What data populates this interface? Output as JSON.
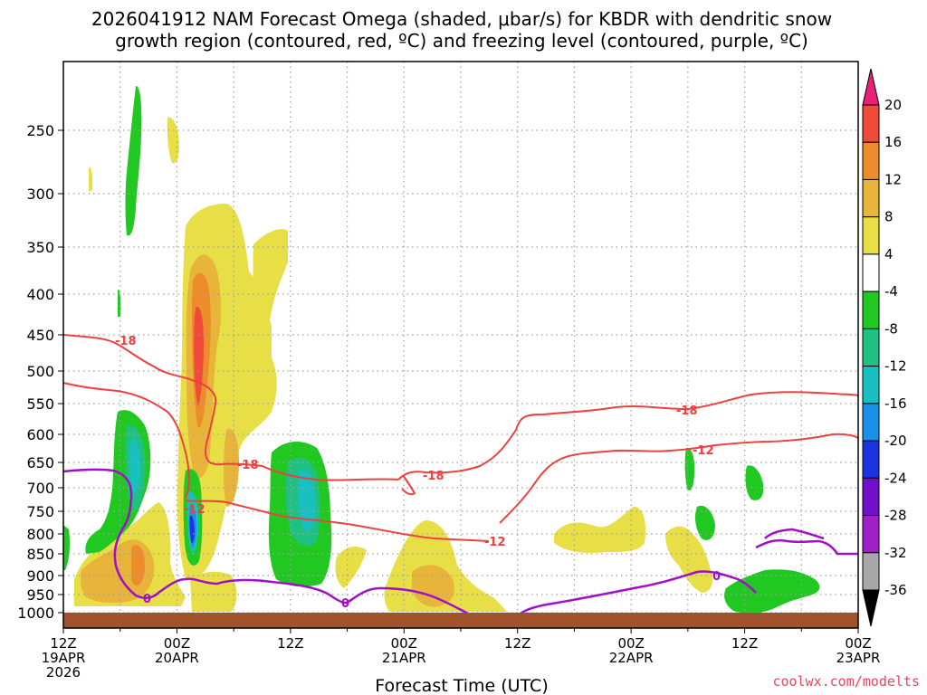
{
  "chart_data": {
    "type": "time-height cross section",
    "title_lines": [
      "2026041912 NAM Forecast Omega (shaded, μbar/s) for KBDR with dendritic snow",
      "growth region (contoured, red, ºC) and freezing level (contoured, purple, ºC)"
    ],
    "xlabel": "Forecast Time (UTC)",
    "ylabel": "",
    "y_axis_levels_hPa": [
      "250",
      "300",
      "350",
      "400",
      "450",
      "500",
      "550",
      "600",
      "650",
      "700",
      "750",
      "800",
      "850",
      "900",
      "950",
      "1000"
    ],
    "x_ticks": [
      {
        "hour": 0,
        "line1": "12Z",
        "line2": "19APR",
        "line3": "2026"
      },
      {
        "hour": 12,
        "line1": "00Z",
        "line2": "20APR",
        "line3": ""
      },
      {
        "hour": 24,
        "line1": "12Z",
        "line2": "",
        "line3": ""
      },
      {
        "hour": 36,
        "line1": "00Z",
        "line2": "21APR",
        "line3": ""
      },
      {
        "hour": 48,
        "line1": "12Z",
        "line2": "",
        "line3": ""
      },
      {
        "hour": 60,
        "line1": "00Z",
        "line2": "22APR",
        "line3": ""
      },
      {
        "hour": 72,
        "line1": "12Z",
        "line2": "",
        "line3": ""
      },
      {
        "hour": 84,
        "line1": "00Z",
        "line2": "23APR",
        "line3": ""
      }
    ],
    "colorbar": {
      "labels": [
        "20",
        "16",
        "12",
        "8",
        "4",
        "-4",
        "-8",
        "-12",
        "-16",
        "-20",
        "-24",
        "-28",
        "-32",
        "-36"
      ],
      "colors": [
        "#e8207a",
        "#f04a3a",
        "#ec8c2a",
        "#e8b43a",
        "#e8de46",
        "#ffffff",
        "#22c822",
        "#20c082",
        "#18c0c0",
        "#1a90e8",
        "#1c34e0",
        "#7010c8",
        "#a020c8",
        "#a8a8a8",
        "#000000"
      ]
    },
    "contour_labels": {
      "snow_growth": [
        "-18",
        "-18",
        "-18",
        "-18",
        "-12",
        "-12",
        "-12"
      ],
      "freezing": [
        "0",
        "0",
        "0"
      ]
    },
    "colors": {
      "snow_growth_line": "#ee4040",
      "freezing_line": "#a010c8",
      "ground": "#a0522d",
      "grid": "#a0a0a0"
    },
    "credit": "coolwx.com/modelts"
  }
}
